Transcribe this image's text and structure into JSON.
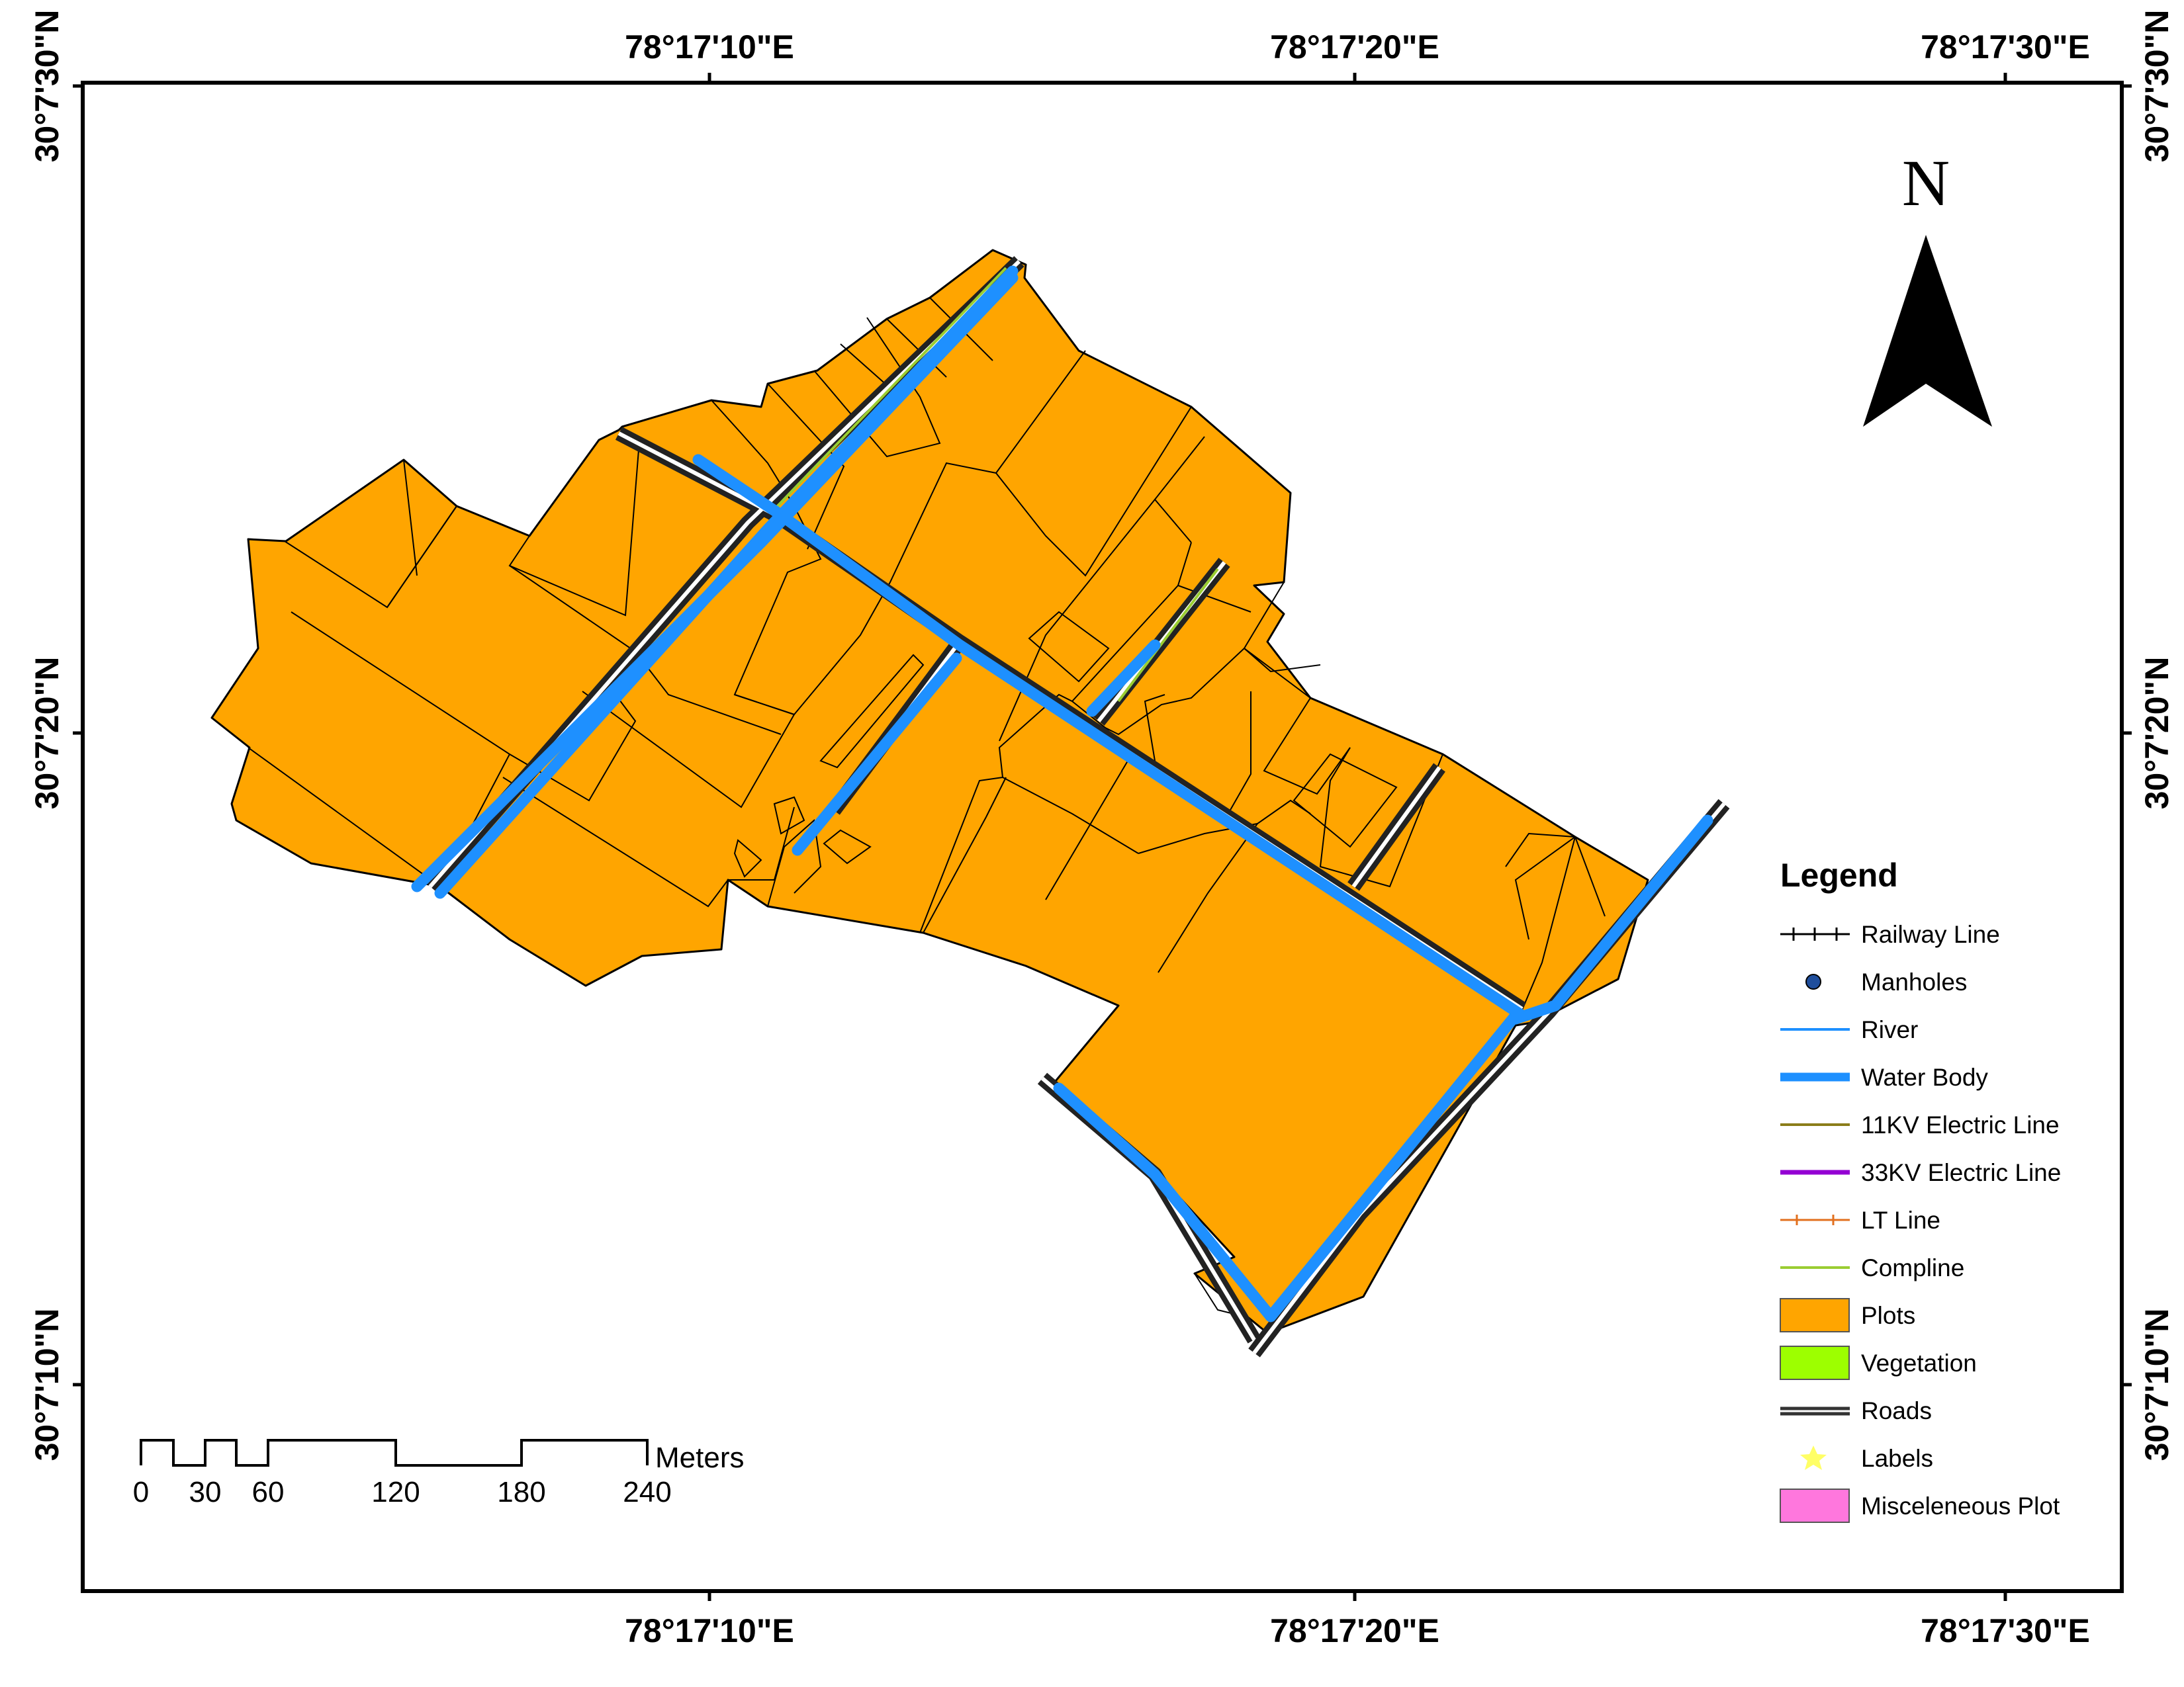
{
  "coords": {
    "top": [
      "78°17'10\"E",
      "78°17'20\"E",
      "78°17'30\"E"
    ],
    "bottom": [
      "78°17'10\"E",
      "78°17'20\"E",
      "78°17'30\"E"
    ],
    "left": [
      "30°7'30\"N",
      "30°7'20\"N",
      "30°7'10\"N"
    ],
    "right": [
      "30°7'30\"N",
      "30°7'20\"N",
      "30°7'10\"N"
    ]
  },
  "north": {
    "label": "N"
  },
  "scale": {
    "unit": "Meters",
    "ticks": [
      "0",
      "30",
      "60",
      "120",
      "180",
      "240"
    ]
  },
  "legend": {
    "title": "Legend",
    "items": [
      {
        "label": "Railway Line",
        "symbol": "railway",
        "color": "#000000"
      },
      {
        "label": "Manholes",
        "symbol": "dot",
        "color": "#1f4e9c"
      },
      {
        "label": "River",
        "symbol": "line",
        "color": "#1e90ff"
      },
      {
        "label": "Water Body",
        "symbol": "thick",
        "color": "#1e90ff"
      },
      {
        "label": "11KV Electric Line",
        "symbol": "line",
        "color": "#8b7d1a"
      },
      {
        "label": "33KV Electric Line",
        "symbol": "line-bold",
        "color": "#9400d3"
      },
      {
        "label": "LT Line",
        "symbol": "ticked",
        "color": "#e2701f"
      },
      {
        "label": "Compline",
        "symbol": "line",
        "color": "#9acd32"
      },
      {
        "label": "Plots",
        "symbol": "box",
        "color": "#ffa500"
      },
      {
        "label": "Vegetation",
        "symbol": "box",
        "color": "#9dff00"
      },
      {
        "label": "Roads",
        "symbol": "road",
        "color": "#333333"
      },
      {
        "label": "Labels",
        "symbol": "star",
        "color": "#ffff66"
      },
      {
        "label": "Misceleneous Plot",
        "symbol": "box",
        "color": "#ff77dd"
      }
    ]
  },
  "colors": {
    "plot_fill": "#ffa500",
    "water": "#1e90ff",
    "road": "#333333",
    "frame": "#000000"
  }
}
